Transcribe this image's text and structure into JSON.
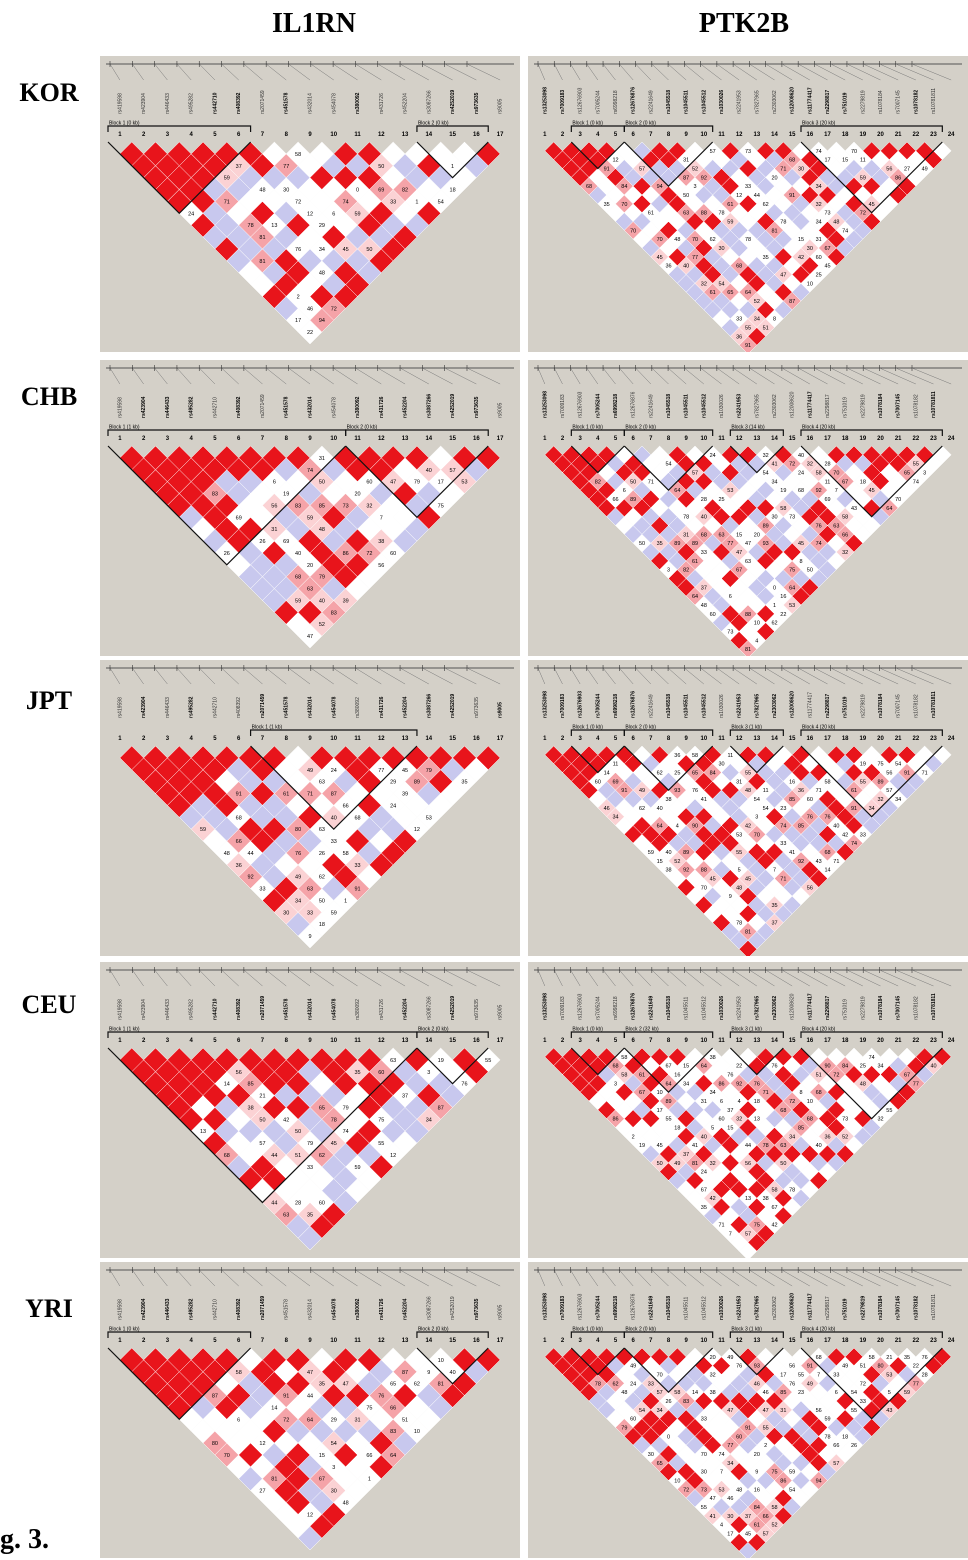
{
  "columns": [
    "IL1RN",
    "PTK2B"
  ],
  "populations": [
    "KOR",
    "CHB",
    "JPT",
    "CEU",
    "YRI"
  ],
  "figure_label": "g. 3.",
  "colors": {
    "strong_ld": "#e8141b",
    "medium_ld": "#f5a3a8",
    "light_ld": "#fbd2d4",
    "no_ld": "#ffffff",
    "uninformative": "#c8c8ee",
    "background": "#d4d0c8"
  },
  "il1rn_snps": [
    "rs419598",
    "rs423904",
    "rs446433",
    "rs495282",
    "rs442710",
    "rs408392",
    "rs2071459",
    "rs451578",
    "rs432014",
    "rs454078",
    "rs380092",
    "rs431726",
    "rs452204",
    "rs3087266",
    "rs4252019",
    "rs973635",
    "rs9005"
  ],
  "ptk2b_snps": [
    "rs13253098",
    "rs7009183",
    "rs12676903",
    "rs7005244",
    "rs6998218",
    "rs12676876",
    "rs2241649",
    "rs1045518",
    "rs1045511",
    "rs1045512",
    "rs1030026",
    "rs2241953",
    "rs7827965",
    "rs2303062",
    "rs12008620",
    "rs11774417",
    "rs2298817",
    "rs751019",
    "rs2279819",
    "rs1078184",
    "rs7007145",
    "rs1078182",
    "rs10781811"
  ],
  "panels": {
    "IL1RN": [
      {
        "pop": "KOR",
        "blocks": [
          "Block 1 (0 kb)",
          "Block 2 (0 kb)"
        ]
      },
      {
        "pop": "CHB",
        "blocks": [
          "Block 1 (1 kb)",
          "Block 2 (0 kb)"
        ]
      },
      {
        "pop": "JPT",
        "blocks": [
          "Block 1 (1 kb)"
        ]
      },
      {
        "pop": "CEU",
        "blocks": [
          "Block 1 (1 kb)",
          "Block 2 (0 kb)"
        ]
      },
      {
        "pop": "YRI",
        "blocks": [
          "Block 1 (0 kb)",
          "Block 2 (0 kb)"
        ]
      }
    ],
    "PTK2B": [
      {
        "pop": "KOR",
        "blocks": [
          "Block 1 (0 kb)",
          "Block 2 (0 kb)",
          "Block 3 (20 kb)"
        ]
      },
      {
        "pop": "CHB",
        "blocks": [
          "Block 1 (0 kb)",
          "Block 2 (0 kb)",
          "Block 3 (14 kb)",
          "Block 4 (20 kb)"
        ]
      },
      {
        "pop": "JPT",
        "blocks": [
          "Block 1 (0 kb)",
          "Block 2 (0 kb)",
          "Block 3 (1 kb)",
          "Block 4 (20 kb)"
        ]
      },
      {
        "pop": "CEU",
        "blocks": [
          "Block 1 (0 kb)",
          "Block 2 (32 kb)",
          "Block 3 (1 kb)",
          "Block 4 (20 kb)"
        ]
      },
      {
        "pop": "YRI",
        "blocks": [
          "Block 1 (0 kb)",
          "Block 2 (0 kb)",
          "Block 3 (1 kb)",
          "Block 4 (20 kb)"
        ]
      }
    ]
  }
}
